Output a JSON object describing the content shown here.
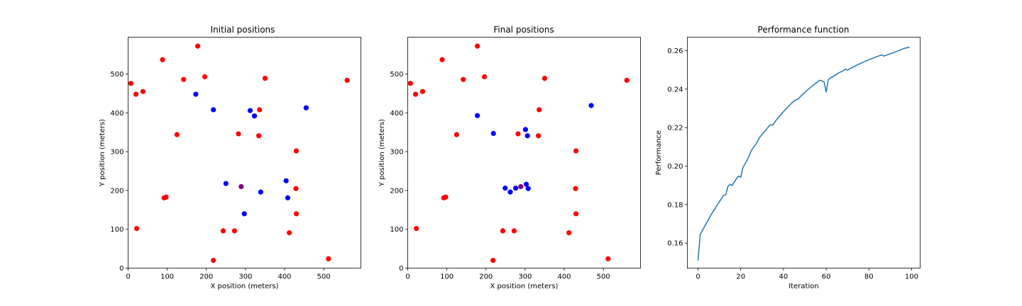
{
  "chart_data": [
    {
      "type": "scatter",
      "title": "Initial positions",
      "xlabel": "X position (meters)",
      "ylabel": "Y position (meters)",
      "xlim": [
        0,
        595
      ],
      "ylim": [
        0,
        595
      ],
      "xticks": [
        0,
        100,
        200,
        300,
        400,
        500
      ],
      "yticks": [
        0,
        100,
        200,
        300,
        400,
        500
      ],
      "grid": false,
      "series": [
        {
          "color": "#ff0000",
          "points": [
            [
              7,
              476
            ],
            [
              20,
              448
            ],
            [
              38,
              455
            ],
            [
              88,
              537
            ],
            [
              178,
              572
            ],
            [
              142,
              486
            ],
            [
              196,
              493
            ],
            [
              350,
              489
            ],
            [
              560,
              484
            ],
            [
              125,
              344
            ],
            [
              282,
              346
            ],
            [
              336,
              408
            ],
            [
              334,
              341
            ],
            [
              430,
              302
            ],
            [
              92,
              181
            ],
            [
              97,
              183
            ],
            [
              429,
              205
            ],
            [
              430,
              140
            ],
            [
              22,
              102
            ],
            [
              243,
              96
            ],
            [
              272,
              96
            ],
            [
              412,
              91
            ],
            [
              218,
              20
            ],
            [
              512,
              24
            ]
          ]
        },
        {
          "color": "#0000ff",
          "points": [
            [
              173,
              448
            ],
            [
              218,
              408
            ],
            [
              312,
              406
            ],
            [
              323,
              392
            ],
            [
              455,
              413
            ],
            [
              250,
              218
            ],
            [
              339,
              196
            ],
            [
              404,
              225
            ],
            [
              408,
              181
            ],
            [
              297,
              140
            ]
          ]
        },
        {
          "color": "#800080",
          "points": [
            [
              289,
              210
            ]
          ]
        }
      ]
    },
    {
      "type": "scatter",
      "title": "Final positions",
      "xlabel": "X position (meters)",
      "ylabel": "Y position (meters)",
      "xlim": [
        0,
        595
      ],
      "ylim": [
        0,
        595
      ],
      "xticks": [
        0,
        100,
        200,
        300,
        400,
        500
      ],
      "yticks": [
        0,
        100,
        200,
        300,
        400,
        500
      ],
      "grid": false,
      "series": [
        {
          "color": "#ff0000",
          "points": [
            [
              7,
              476
            ],
            [
              20,
              448
            ],
            [
              38,
              455
            ],
            [
              88,
              537
            ],
            [
              178,
              572
            ],
            [
              142,
              486
            ],
            [
              196,
              493
            ],
            [
              350,
              489
            ],
            [
              560,
              484
            ],
            [
              125,
              344
            ],
            [
              282,
              346
            ],
            [
              336,
              408
            ],
            [
              334,
              341
            ],
            [
              430,
              302
            ],
            [
              92,
              181
            ],
            [
              97,
              183
            ],
            [
              429,
              205
            ],
            [
              430,
              140
            ],
            [
              22,
              102
            ],
            [
              243,
              96
            ],
            [
              272,
              96
            ],
            [
              412,
              91
            ],
            [
              218,
              20
            ],
            [
              512,
              24
            ]
          ]
        },
        {
          "color": "#0000ff",
          "points": [
            [
              178,
              393
            ],
            [
              219,
              347
            ],
            [
              301,
              357
            ],
            [
              306,
              341
            ],
            [
              469,
              419
            ],
            [
              249,
              206
            ],
            [
              262,
              196
            ],
            [
              276,
              206
            ],
            [
              303,
              216
            ],
            [
              308,
              205
            ]
          ]
        },
        {
          "color": "#800080",
          "points": [
            [
              289,
              210
            ]
          ]
        }
      ]
    },
    {
      "type": "line",
      "title": "Performance function",
      "xlabel": "Iteration",
      "ylabel": "Performance",
      "xlim": [
        -5,
        104
      ],
      "ylim": [
        0.147,
        0.267
      ],
      "xticks": [
        0,
        20,
        40,
        60,
        80,
        100
      ],
      "yticks": [
        0.16,
        0.18,
        0.2,
        0.22,
        0.24,
        0.26
      ],
      "ytick_labels": [
        "0.16",
        "0.18",
        "0.20",
        "0.22",
        "0.24",
        "0.26"
      ],
      "grid": false,
      "series": [
        {
          "color": "#1f77b4",
          "x": [
            0,
            1,
            2,
            3,
            4,
            5,
            6,
            7,
            8,
            9,
            10,
            11,
            12,
            13,
            14,
            15,
            16,
            17,
            18,
            19,
            20,
            21,
            22,
            23,
            24,
            25,
            26,
            27,
            28,
            29,
            30,
            31,
            32,
            33,
            34,
            35,
            36,
            37,
            38,
            39,
            40,
            41,
            42,
            43,
            44,
            45,
            46,
            47,
            48,
            49,
            50,
            51,
            52,
            53,
            54,
            55,
            56,
            57,
            58,
            59,
            60,
            61,
            62,
            63,
            64,
            65,
            66,
            67,
            68,
            69,
            70,
            71,
            72,
            73,
            74,
            75,
            76,
            77,
            78,
            79,
            80,
            81,
            82,
            83,
            84,
            85,
            86,
            87,
            88,
            89,
            90,
            91,
            92,
            93,
            94,
            95,
            96,
            97,
            98,
            99
          ],
          "y": [
            0.151,
            0.1645,
            0.1665,
            0.1685,
            0.1705,
            0.1725,
            0.1745,
            0.1763,
            0.178,
            0.1798,
            0.1815,
            0.1832,
            0.1848,
            0.1852,
            0.1895,
            0.1905,
            0.19,
            0.1918,
            0.1935,
            0.1948,
            0.1942,
            0.1992,
            0.2012,
            0.2032,
            0.2055,
            0.2082,
            0.2098,
            0.2112,
            0.2132,
            0.2152,
            0.2165,
            0.2178,
            0.219,
            0.2205,
            0.2215,
            0.2213,
            0.223,
            0.2245,
            0.2258,
            0.227,
            0.2283,
            0.2295,
            0.2307,
            0.2318,
            0.2329,
            0.2338,
            0.2345,
            0.235,
            0.2362,
            0.2373,
            0.2383,
            0.2393,
            0.2403,
            0.2412,
            0.2421,
            0.243,
            0.2438,
            0.2446,
            0.2443,
            0.2438,
            0.2385,
            0.245,
            0.2458,
            0.2465,
            0.2472,
            0.2478,
            0.2485,
            0.2491,
            0.2496,
            0.2503,
            0.2499,
            0.2505,
            0.2511,
            0.2517,
            0.2523,
            0.2528,
            0.2533,
            0.2538,
            0.2543,
            0.2548,
            0.2553,
            0.2557,
            0.2561,
            0.2566,
            0.257,
            0.2574,
            0.2578,
            0.2572,
            0.2576,
            0.258,
            0.2584,
            0.2588,
            0.2592,
            0.2596,
            0.26,
            0.2605,
            0.261,
            0.2613,
            0.2616,
            0.2618
          ]
        }
      ]
    }
  ]
}
